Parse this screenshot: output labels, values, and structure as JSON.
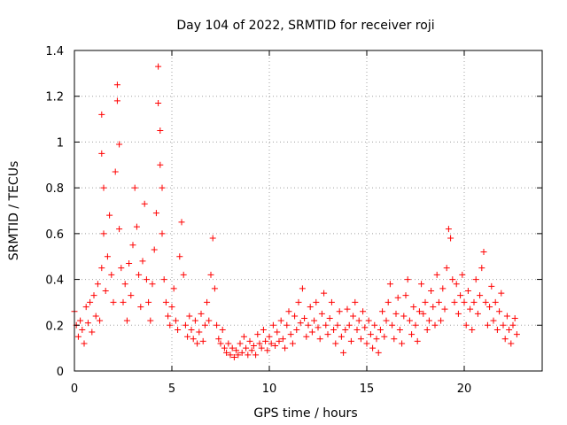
{
  "chart_data": {
    "type": "scatter",
    "title": "Day 104 of 2022, SRMTID for receiver roji",
    "xlabel": "GPS time / hours",
    "ylabel": "SRMTID / TECUs",
    "xlim": [
      0,
      24
    ],
    "ylim": [
      0,
      1.4
    ],
    "xticks": [
      0,
      5,
      10,
      15,
      20
    ],
    "xtick_labels": [
      "0",
      "5",
      "10",
      "15",
      "20"
    ],
    "yticks": [
      0,
      0.2,
      0.4,
      0.6,
      0.8,
      1.0,
      1.2,
      1.4
    ],
    "ytick_labels": [
      "0",
      "0.2",
      "0.4",
      "0.6",
      "0.8",
      "1",
      "1.2",
      "1.4"
    ],
    "grid": true,
    "marker": "+",
    "color": "#ff0000",
    "series": [
      {
        "name": "SRMTID",
        "points": [
          [
            0.0,
            0.26
          ],
          [
            0.1,
            0.2
          ],
          [
            0.2,
            0.15
          ],
          [
            0.3,
            0.22
          ],
          [
            0.4,
            0.18
          ],
          [
            0.5,
            0.12
          ],
          [
            0.6,
            0.28
          ],
          [
            0.7,
            0.21
          ],
          [
            0.8,
            0.3
          ],
          [
            0.9,
            0.17
          ],
          [
            1.0,
            0.33
          ],
          [
            1.1,
            0.24
          ],
          [
            1.2,
            0.38
          ],
          [
            1.3,
            0.22
          ],
          [
            1.4,
            0.45
          ],
          [
            1.4,
            0.95
          ],
          [
            1.4,
            1.12
          ],
          [
            1.5,
            0.8
          ],
          [
            1.5,
            0.6
          ],
          [
            1.6,
            0.35
          ],
          [
            1.7,
            0.5
          ],
          [
            1.8,
            0.68
          ],
          [
            1.9,
            0.42
          ],
          [
            2.0,
            0.3
          ],
          [
            2.1,
            0.87
          ],
          [
            2.2,
            1.25
          ],
          [
            2.2,
            1.18
          ],
          [
            2.3,
            0.99
          ],
          [
            2.3,
            0.62
          ],
          [
            2.4,
            0.45
          ],
          [
            2.5,
            0.3
          ],
          [
            2.6,
            0.38
          ],
          [
            2.7,
            0.22
          ],
          [
            2.8,
            0.47
          ],
          [
            2.9,
            0.33
          ],
          [
            3.0,
            0.55
          ],
          [
            3.1,
            0.8
          ],
          [
            3.2,
            0.63
          ],
          [
            3.3,
            0.42
          ],
          [
            3.4,
            0.28
          ],
          [
            3.5,
            0.48
          ],
          [
            3.6,
            0.73
          ],
          [
            3.7,
            0.4
          ],
          [
            3.8,
            0.3
          ],
          [
            3.9,
            0.22
          ],
          [
            4.0,
            0.38
          ],
          [
            4.1,
            0.53
          ],
          [
            4.2,
            0.69
          ],
          [
            4.3,
            1.33
          ],
          [
            4.3,
            1.17
          ],
          [
            4.4,
            1.05
          ],
          [
            4.4,
            0.9
          ],
          [
            4.5,
            0.8
          ],
          [
            4.5,
            0.6
          ],
          [
            4.6,
            0.4
          ],
          [
            4.7,
            0.3
          ],
          [
            4.8,
            0.24
          ],
          [
            4.9,
            0.2
          ],
          [
            5.0,
            0.28
          ],
          [
            5.1,
            0.36
          ],
          [
            5.2,
            0.22
          ],
          [
            5.3,
            0.18
          ],
          [
            5.4,
            0.5
          ],
          [
            5.5,
            0.65
          ],
          [
            5.6,
            0.42
          ],
          [
            5.7,
            0.2
          ],
          [
            5.8,
            0.15
          ],
          [
            5.9,
            0.24
          ],
          [
            6.0,
            0.18
          ],
          [
            6.1,
            0.14
          ],
          [
            6.2,
            0.22
          ],
          [
            6.3,
            0.12
          ],
          [
            6.4,
            0.17
          ],
          [
            6.5,
            0.25
          ],
          [
            6.6,
            0.13
          ],
          [
            6.7,
            0.2
          ],
          [
            6.8,
            0.3
          ],
          [
            6.9,
            0.22
          ],
          [
            7.0,
            0.42
          ],
          [
            7.1,
            0.58
          ],
          [
            7.2,
            0.36
          ],
          [
            7.3,
            0.2
          ],
          [
            7.4,
            0.14
          ],
          [
            7.5,
            0.12
          ],
          [
            7.6,
            0.18
          ],
          [
            7.7,
            0.1
          ],
          [
            7.8,
            0.08
          ],
          [
            7.9,
            0.12
          ],
          [
            8.0,
            0.07
          ],
          [
            8.1,
            0.1
          ],
          [
            8.2,
            0.06
          ],
          [
            8.3,
            0.09
          ],
          [
            8.4,
            0.07
          ],
          [
            8.5,
            0.12
          ],
          [
            8.6,
            0.08
          ],
          [
            8.7,
            0.15
          ],
          [
            8.8,
            0.1
          ],
          [
            8.9,
            0.07
          ],
          [
            9.0,
            0.13
          ],
          [
            9.1,
            0.09
          ],
          [
            9.2,
            0.11
          ],
          [
            9.3,
            0.07
          ],
          [
            9.4,
            0.16
          ],
          [
            9.5,
            0.12
          ],
          [
            9.6,
            0.1
          ],
          [
            9.7,
            0.18
          ],
          [
            9.8,
            0.13
          ],
          [
            9.9,
            0.09
          ],
          [
            10.0,
            0.15
          ],
          [
            10.1,
            0.12
          ],
          [
            10.2,
            0.2
          ],
          [
            10.3,
            0.11
          ],
          [
            10.4,
            0.17
          ],
          [
            10.5,
            0.13
          ],
          [
            10.6,
            0.22
          ],
          [
            10.7,
            0.14
          ],
          [
            10.8,
            0.1
          ],
          [
            10.9,
            0.2
          ],
          [
            11.0,
            0.26
          ],
          [
            11.1,
            0.16
          ],
          [
            11.2,
            0.12
          ],
          [
            11.3,
            0.24
          ],
          [
            11.4,
            0.18
          ],
          [
            11.5,
            0.3
          ],
          [
            11.6,
            0.21
          ],
          [
            11.7,
            0.36
          ],
          [
            11.8,
            0.23
          ],
          [
            11.9,
            0.15
          ],
          [
            12.0,
            0.2
          ],
          [
            12.1,
            0.28
          ],
          [
            12.2,
            0.17
          ],
          [
            12.3,
            0.22
          ],
          [
            12.4,
            0.3
          ],
          [
            12.5,
            0.19
          ],
          [
            12.6,
            0.14
          ],
          [
            12.7,
            0.25
          ],
          [
            12.8,
            0.34
          ],
          [
            12.9,
            0.2
          ],
          [
            13.0,
            0.16
          ],
          [
            13.1,
            0.23
          ],
          [
            13.2,
            0.3
          ],
          [
            13.3,
            0.18
          ],
          [
            13.4,
            0.12
          ],
          [
            13.5,
            0.2
          ],
          [
            13.6,
            0.26
          ],
          [
            13.7,
            0.15
          ],
          [
            13.8,
            0.08
          ],
          [
            13.9,
            0.18
          ],
          [
            14.0,
            0.27
          ],
          [
            14.1,
            0.2
          ],
          [
            14.2,
            0.13
          ],
          [
            14.3,
            0.24
          ],
          [
            14.4,
            0.3
          ],
          [
            14.5,
            0.18
          ],
          [
            14.6,
            0.22
          ],
          [
            14.7,
            0.14
          ],
          [
            14.8,
            0.26
          ],
          [
            14.9,
            0.19
          ],
          [
            15.0,
            0.12
          ],
          [
            15.1,
            0.22
          ],
          [
            15.2,
            0.16
          ],
          [
            15.3,
            0.1
          ],
          [
            15.4,
            0.2
          ],
          [
            15.5,
            0.14
          ],
          [
            15.6,
            0.08
          ],
          [
            15.7,
            0.18
          ],
          [
            15.8,
            0.26
          ],
          [
            15.9,
            0.15
          ],
          [
            16.0,
            0.22
          ],
          [
            16.1,
            0.3
          ],
          [
            16.2,
            0.38
          ],
          [
            16.3,
            0.2
          ],
          [
            16.4,
            0.14
          ],
          [
            16.5,
            0.25
          ],
          [
            16.6,
            0.32
          ],
          [
            16.7,
            0.18
          ],
          [
            16.8,
            0.12
          ],
          [
            16.9,
            0.24
          ],
          [
            17.0,
            0.33
          ],
          [
            17.1,
            0.4
          ],
          [
            17.2,
            0.22
          ],
          [
            17.3,
            0.16
          ],
          [
            17.4,
            0.28
          ],
          [
            17.5,
            0.2
          ],
          [
            17.6,
            0.13
          ],
          [
            17.7,
            0.26
          ],
          [
            17.8,
            0.38
          ],
          [
            17.9,
            0.25
          ],
          [
            18.0,
            0.3
          ],
          [
            18.1,
            0.18
          ],
          [
            18.2,
            0.22
          ],
          [
            18.3,
            0.35
          ],
          [
            18.4,
            0.28
          ],
          [
            18.5,
            0.2
          ],
          [
            18.6,
            0.42
          ],
          [
            18.7,
            0.3
          ],
          [
            18.8,
            0.22
          ],
          [
            18.9,
            0.36
          ],
          [
            19.0,
            0.27
          ],
          [
            19.1,
            0.45
          ],
          [
            19.2,
            0.62
          ],
          [
            19.3,
            0.58
          ],
          [
            19.4,
            0.4
          ],
          [
            19.5,
            0.3
          ],
          [
            19.6,
            0.38
          ],
          [
            19.7,
            0.25
          ],
          [
            19.8,
            0.33
          ],
          [
            19.9,
            0.42
          ],
          [
            20.0,
            0.3
          ],
          [
            20.1,
            0.2
          ],
          [
            20.2,
            0.35
          ],
          [
            20.3,
            0.27
          ],
          [
            20.4,
            0.18
          ],
          [
            20.5,
            0.3
          ],
          [
            20.6,
            0.4
          ],
          [
            20.7,
            0.25
          ],
          [
            20.8,
            0.33
          ],
          [
            20.9,
            0.45
          ],
          [
            21.0,
            0.52
          ],
          [
            21.1,
            0.3
          ],
          [
            21.2,
            0.2
          ],
          [
            21.3,
            0.28
          ],
          [
            21.4,
            0.37
          ],
          [
            21.5,
            0.22
          ],
          [
            21.6,
            0.3
          ],
          [
            21.7,
            0.18
          ],
          [
            21.8,
            0.26
          ],
          [
            21.9,
            0.34
          ],
          [
            22.0,
            0.2
          ],
          [
            22.1,
            0.14
          ],
          [
            22.2,
            0.24
          ],
          [
            22.3,
            0.18
          ],
          [
            22.4,
            0.12
          ],
          [
            22.5,
            0.2
          ],
          [
            22.6,
            0.23
          ],
          [
            22.7,
            0.16
          ]
        ]
      }
    ]
  }
}
